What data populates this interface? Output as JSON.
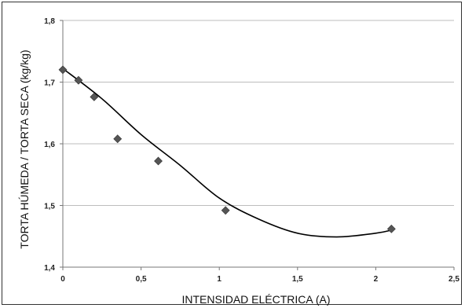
{
  "chart_data": {
    "type": "scatter",
    "title": "",
    "xlabel": "INTENSIDAD ELÉCTRICA (A)",
    "ylabel": "TORTA HÚMEDA / TORTA SECA (kg/kg)",
    "xlim": [
      0,
      2.5
    ],
    "ylim": [
      1.4,
      1.8
    ],
    "x_ticks": [
      0,
      0.5,
      1,
      1.5,
      2,
      2.5
    ],
    "x_tick_labels": [
      "0",
      "0,5",
      "1",
      "1,5",
      "2",
      "2,5"
    ],
    "y_ticks": [
      1.4,
      1.5,
      1.6,
      1.7,
      1.8
    ],
    "y_tick_labels": [
      "1,4",
      "1,5",
      "1,6",
      "1,7",
      "1,8"
    ],
    "grid": "horizontal",
    "series": [
      {
        "marker": "diamond",
        "color": "#555555",
        "x": [
          0,
          0.1,
          0.2,
          0.35,
          0.61,
          1.04,
          2.1
        ],
        "y": [
          1.72,
          1.703,
          1.676,
          1.608,
          1.572,
          1.492,
          1.462
        ]
      }
    ],
    "trendline": {
      "type": "polynomial",
      "color": "#000000",
      "x": [
        0,
        0.25,
        0.5,
        0.75,
        1.0,
        1.25,
        1.5,
        1.75,
        2.0,
        2.1
      ],
      "y": [
        1.722,
        1.673,
        1.615,
        1.565,
        1.512,
        1.478,
        1.455,
        1.449,
        1.455,
        1.46
      ]
    }
  }
}
